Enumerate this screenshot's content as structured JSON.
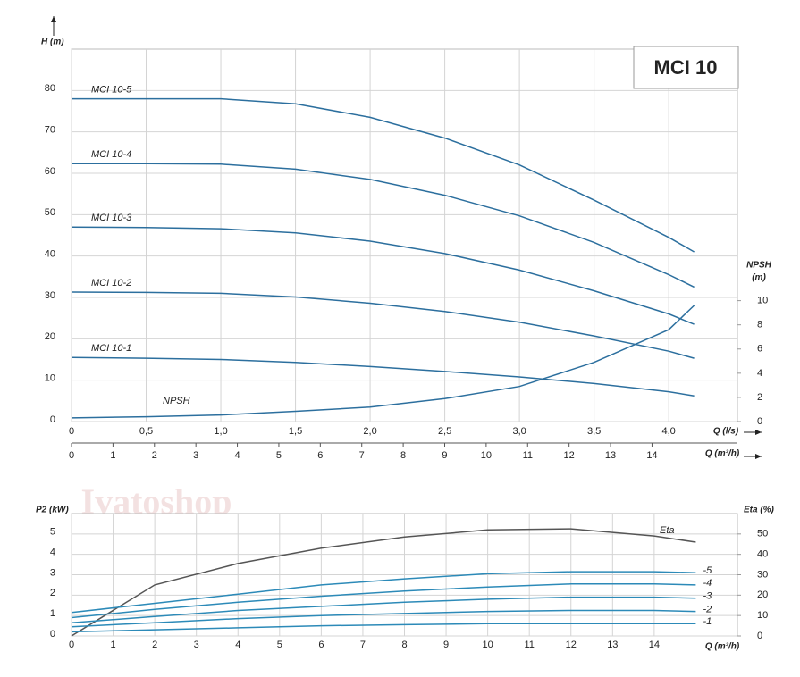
{
  "watermark": "Ivatoshop",
  "chart_data": [
    {
      "type": "line",
      "title": "MCI 10",
      "ylabel": "H (m)",
      "y2label": [
        "NPSH",
        "(m)"
      ],
      "xlabel": "Q (l/s)",
      "x2label": "Q (m³/h)",
      "x": [
        0,
        0.5,
        1.0,
        1.5,
        2.0,
        2.5,
        3.0,
        3.5,
        4.0,
        4.17
      ],
      "xlim": [
        0,
        4.46
      ],
      "xticks": [
        0,
        {
          "value": 0.5,
          "label": "0,5"
        },
        {
          "value": 1.0,
          "label": "1,0"
        },
        {
          "value": 1.5,
          "label": "1,5"
        },
        {
          "value": 2.0,
          "label": "2,0"
        },
        {
          "value": 2.5,
          "label": "2,5"
        },
        {
          "value": 3.0,
          "label": "3,0"
        },
        {
          "value": 3.5,
          "label": "3,5"
        },
        {
          "value": 4.0,
          "label": "4,0"
        }
      ],
      "x2lim": [
        0,
        16.06
      ],
      "x2ticks": [
        0,
        1,
        2,
        3,
        4,
        5,
        6,
        7,
        8,
        9,
        10,
        11,
        12,
        13,
        14
      ],
      "ylim": [
        0,
        90
      ],
      "yticks": [
        0,
        10,
        20,
        30,
        40,
        50,
        60,
        70,
        80
      ],
      "y2lim": [
        0,
        30.8
      ],
      "y2ticks": [
        0,
        2,
        4,
        6,
        8,
        10
      ],
      "grid": true,
      "series": [
        {
          "name": "MCI 10-5",
          "color": "#2c6f9e",
          "values": [
            78,
            78,
            78,
            76.8,
            73.5,
            68.5,
            62,
            53.5,
            44.5,
            41
          ]
        },
        {
          "name": "MCI 10-4",
          "color": "#2c6f9e",
          "values": [
            62.3,
            62.3,
            62.2,
            61,
            58.5,
            54.7,
            49.7,
            43.3,
            35.5,
            32.5
          ]
        },
        {
          "name": "MCI 10-3",
          "color": "#2c6f9e",
          "values": [
            47,
            46.9,
            46.6,
            45.6,
            43.6,
            40.6,
            36.6,
            31.6,
            26,
            23.5
          ]
        },
        {
          "name": "MCI 10-2",
          "color": "#2c6f9e",
          "values": [
            31.3,
            31.2,
            31,
            30.1,
            28.6,
            26.6,
            24,
            20.7,
            17,
            15.3
          ]
        },
        {
          "name": "MCI 10-1",
          "color": "#2c6f9e",
          "values": [
            15.5,
            15.3,
            15,
            14.3,
            13.3,
            12.1,
            10.8,
            9.2,
            7.2,
            6.2
          ]
        },
        {
          "name": "NPSH",
          "color": "#2c6f9e",
          "axis": "y2",
          "values": [
            0.3,
            0.4,
            0.55,
            0.85,
            1.2,
            1.9,
            2.9,
            4.9,
            7.6,
            9.6
          ]
        }
      ]
    },
    {
      "type": "line",
      "ylabel": "P2 (kW)",
      "y2label": [
        "Eta (%)"
      ],
      "xlabel": "Q (m³/h)",
      "x": [
        0,
        2,
        4,
        6,
        8,
        10,
        12,
        14,
        15
      ],
      "xlim": [
        0,
        16.0
      ],
      "xticks": [
        0,
        1,
        2,
        3,
        4,
        5,
        6,
        7,
        8,
        9,
        10,
        11,
        12,
        13,
        14
      ],
      "ylim": [
        0,
        6
      ],
      "yticks": [
        0,
        1,
        2,
        3,
        4,
        5
      ],
      "y2lim": [
        0,
        60
      ],
      "y2ticks": [
        0,
        10,
        20,
        30,
        40,
        50
      ],
      "grid": true,
      "series": [
        {
          "name": "Eta",
          "color": "#555555",
          "axis": "y2",
          "values": [
            0,
            25,
            35.5,
            43,
            48.5,
            52,
            52.5,
            49,
            46
          ]
        },
        {
          "name": "-5",
          "color": "#2c8ab8",
          "values": [
            1.15,
            1.6,
            2.05,
            2.5,
            2.8,
            3.05,
            3.15,
            3.15,
            3.1
          ]
        },
        {
          "name": "-4",
          "color": "#2c8ab8",
          "values": [
            0.9,
            1.3,
            1.65,
            1.95,
            2.2,
            2.4,
            2.55,
            2.55,
            2.5
          ]
        },
        {
          "name": "-3",
          "color": "#2c8ab8",
          "values": [
            0.65,
            0.95,
            1.25,
            1.45,
            1.65,
            1.8,
            1.9,
            1.9,
            1.85
          ]
        },
        {
          "name": "-2",
          "color": "#2c8ab8",
          "values": [
            0.45,
            0.65,
            0.85,
            1.0,
            1.1,
            1.2,
            1.25,
            1.25,
            1.2
          ]
        },
        {
          "name": "-1",
          "color": "#2c8ab8",
          "values": [
            0.2,
            0.3,
            0.4,
            0.5,
            0.55,
            0.6,
            0.6,
            0.6,
            0.6
          ]
        }
      ]
    }
  ]
}
